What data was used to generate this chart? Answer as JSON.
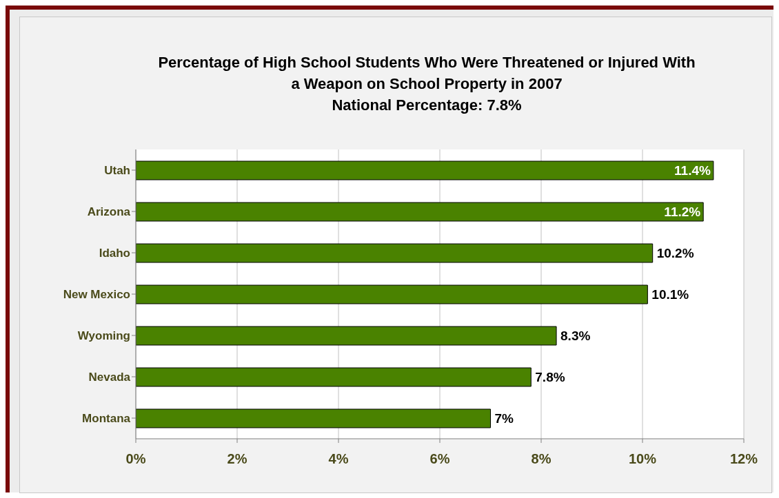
{
  "chart_data": {
    "type": "bar",
    "orientation": "horizontal",
    "title": "Percentage of High School Students Who Were Threatened or Injured With a Weapon on School Property in 2007",
    "subtitle": "National Percentage:  7.8%",
    "categories": [
      "Utah",
      "Arizona",
      "Idaho",
      "New Mexico",
      "Wyoming",
      "Nevada",
      "Montana"
    ],
    "values": [
      11.4,
      11.2,
      10.2,
      10.1,
      8.3,
      7.8,
      7
    ],
    "value_labels": [
      "11.4%",
      "11.2%",
      "10.2%",
      "10.1%",
      "8.3%",
      "7.8%",
      "7%"
    ],
    "color": "#4a8200",
    "xlim": [
      0,
      12
    ],
    "xticks": [
      {
        "value": 0,
        "label": "0%"
      },
      {
        "value": 2,
        "label": "2%"
      },
      {
        "value": 4,
        "label": "4%"
      },
      {
        "value": 6,
        "label": "6%"
      },
      {
        "value": 8,
        "label": "8%"
      },
      {
        "value": 10,
        "label": "10%"
      },
      {
        "value": 12,
        "label": "12%"
      }
    ],
    "grid": "x"
  }
}
